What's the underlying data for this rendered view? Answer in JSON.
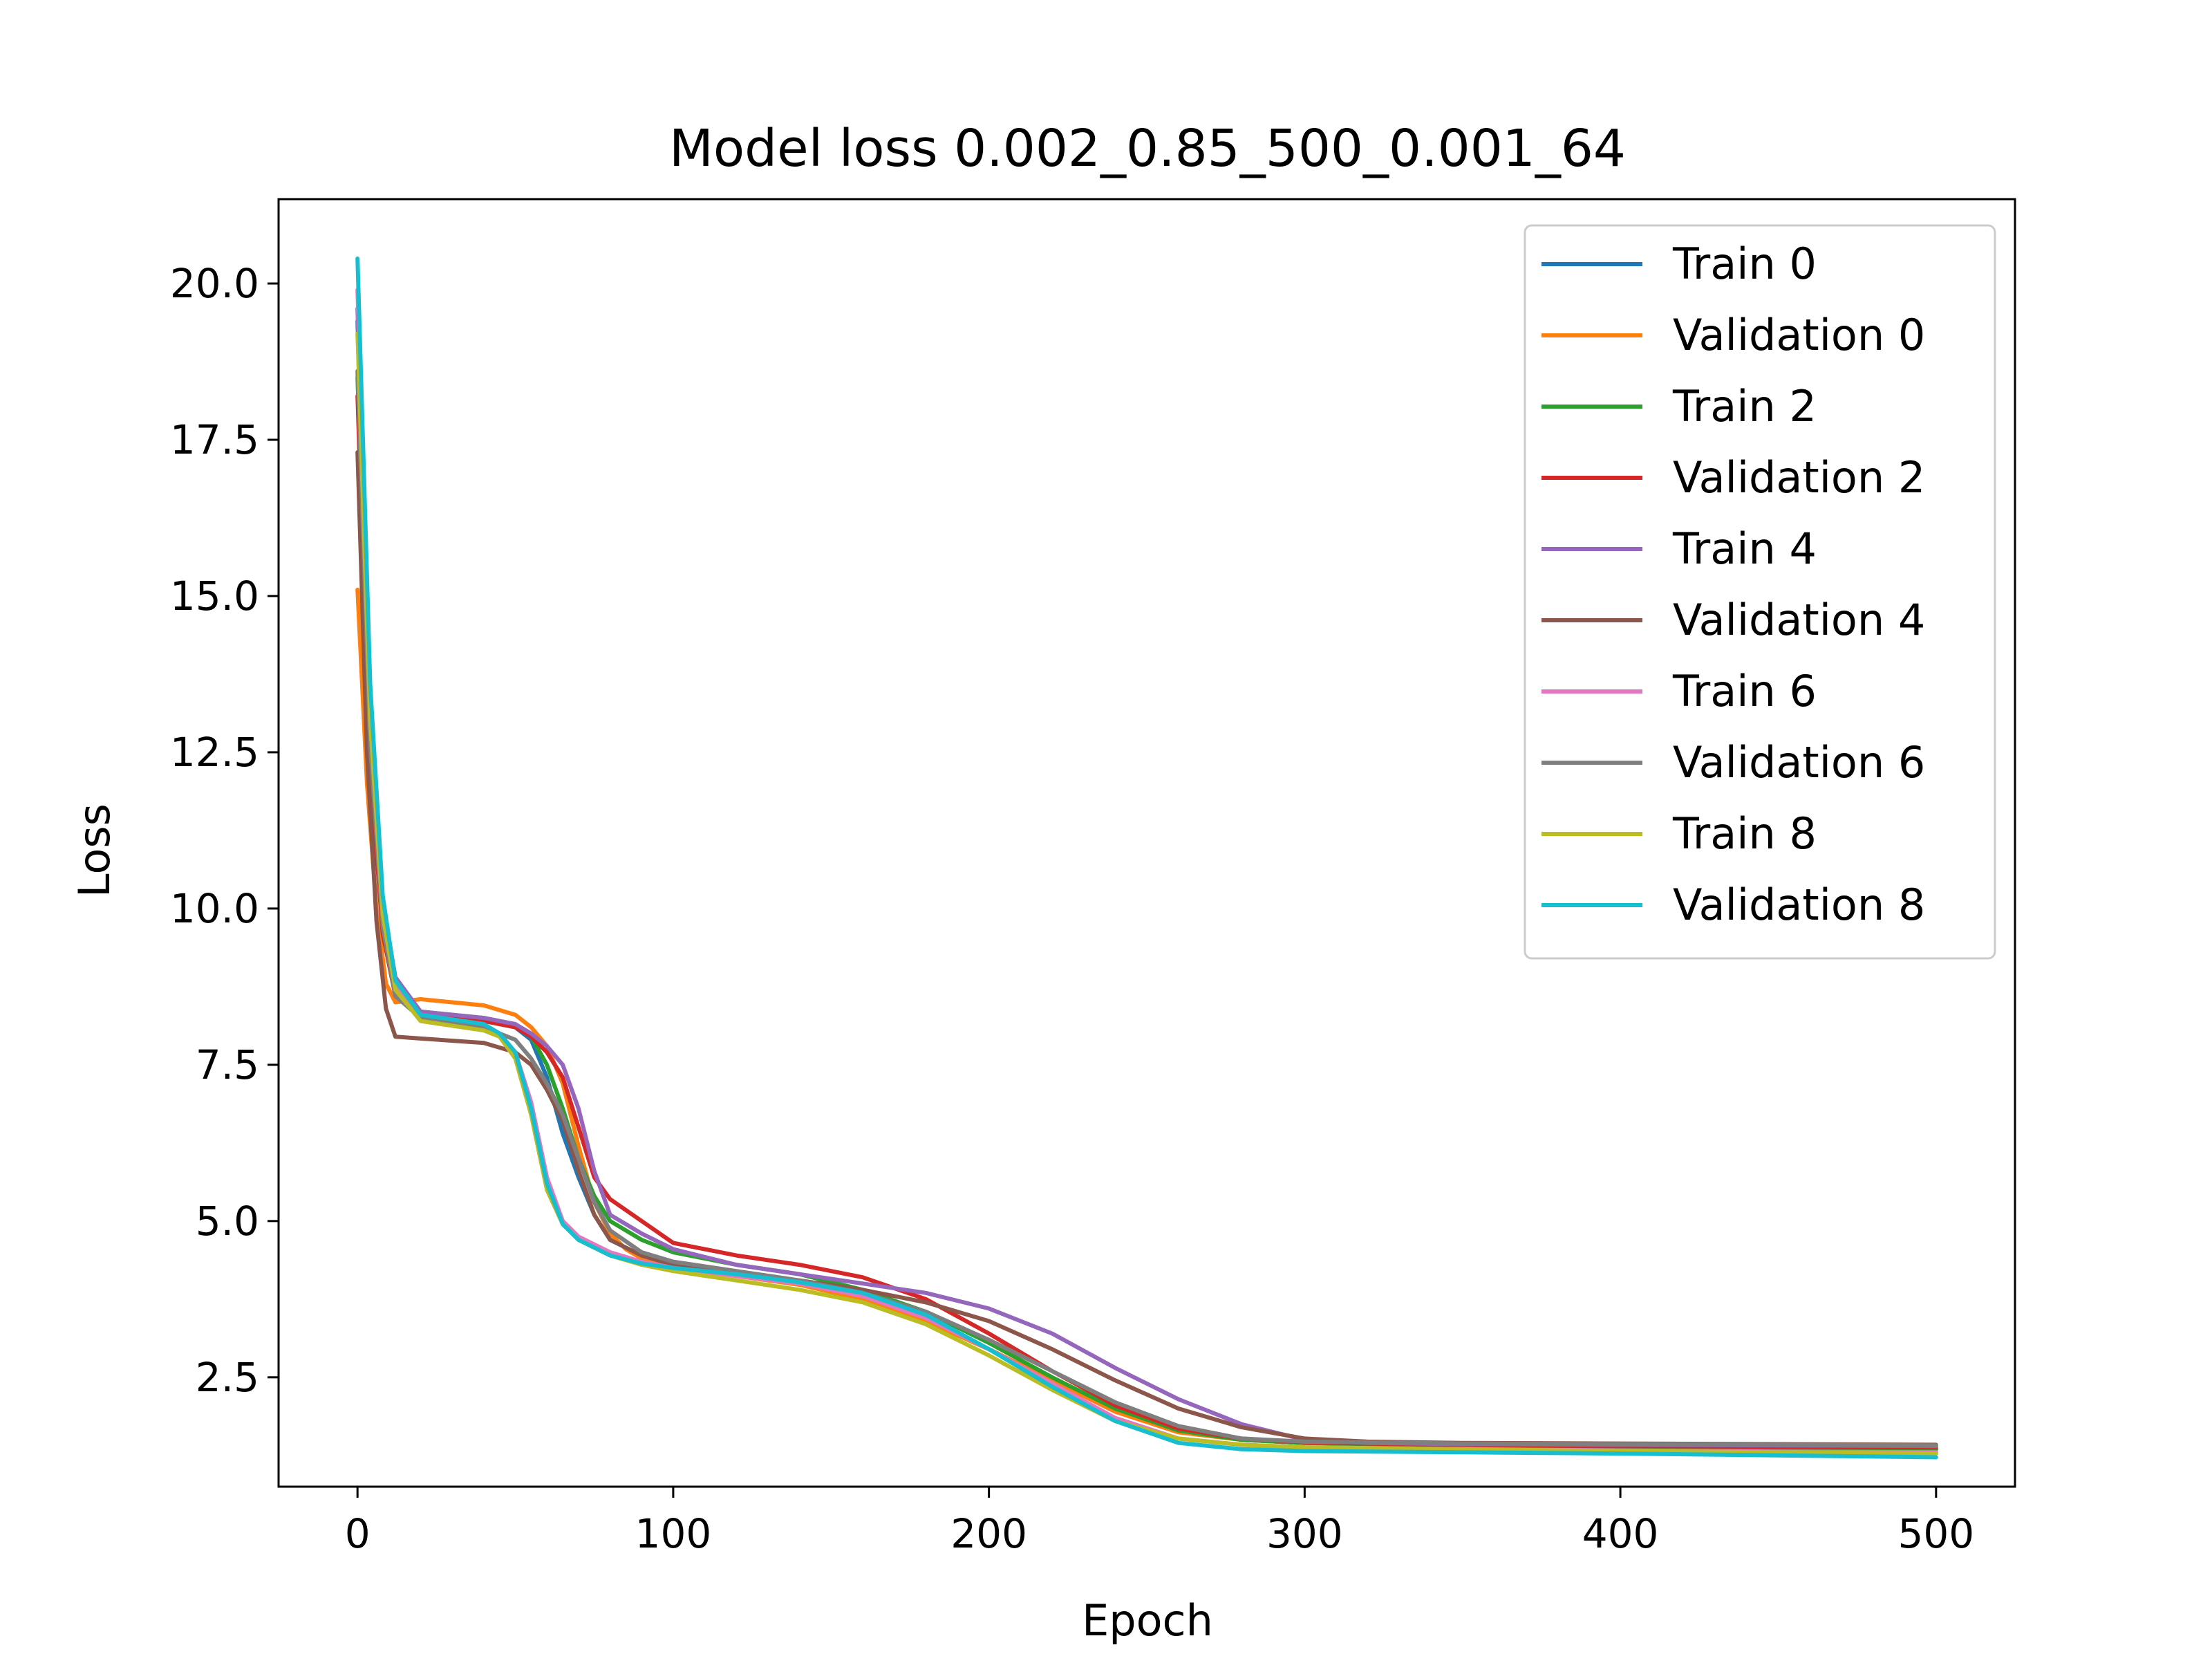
{
  "chart_data": {
    "type": "line",
    "title": "Model loss 0.002_0.85_500_0.001_64",
    "xlabel": "Epoch",
    "ylabel": "Loss",
    "xlim": [
      -25,
      525
    ],
    "ylim": [
      0.75,
      21.35
    ],
    "xticks": [
      0,
      100,
      200,
      300,
      400,
      500
    ],
    "xtick_labels": [
      "0",
      "100",
      "200",
      "300",
      "400",
      "500"
    ],
    "yticks": [
      2.5,
      5.0,
      7.5,
      10.0,
      12.5,
      15.0,
      17.5,
      20.0
    ],
    "ytick_labels": [
      "2.5",
      "5.0",
      "7.5",
      "10.0",
      "12.5",
      "15.0",
      "17.5",
      "20.0"
    ],
    "grid": false,
    "legend_position": "upper right",
    "series": [
      {
        "name": "Train 0",
        "color": "#1f77b4",
        "points": [
          [
            0,
            19.4
          ],
          [
            4,
            13.0
          ],
          [
            8,
            10.0
          ],
          [
            12,
            8.8
          ],
          [
            20,
            8.3
          ],
          [
            40,
            8.2
          ],
          [
            50,
            8.1
          ],
          [
            55,
            7.9
          ],
          [
            60,
            7.3
          ],
          [
            65,
            6.4
          ],
          [
            70,
            5.7
          ],
          [
            75,
            5.1
          ],
          [
            80,
            4.7
          ],
          [
            90,
            4.45
          ],
          [
            100,
            4.3
          ],
          [
            120,
            4.15
          ],
          [
            140,
            4.0
          ],
          [
            160,
            3.75
          ],
          [
            180,
            3.4
          ],
          [
            200,
            2.95
          ],
          [
            220,
            2.45
          ],
          [
            240,
            2.0
          ],
          [
            260,
            1.65
          ],
          [
            280,
            1.5
          ],
          [
            300,
            1.45
          ],
          [
            350,
            1.4
          ],
          [
            400,
            1.38
          ],
          [
            450,
            1.36
          ],
          [
            500,
            1.35
          ]
        ]
      },
      {
        "name": "Validation 0",
        "color": "#ff7f0e",
        "points": [
          [
            0,
            15.1
          ],
          [
            3,
            12.0
          ],
          [
            6,
            10.0
          ],
          [
            9,
            8.8
          ],
          [
            12,
            8.5
          ],
          [
            20,
            8.55
          ],
          [
            40,
            8.45
          ],
          [
            50,
            8.3
          ],
          [
            55,
            8.1
          ],
          [
            60,
            7.8
          ],
          [
            65,
            7.2
          ],
          [
            70,
            6.2
          ],
          [
            75,
            5.3
          ],
          [
            80,
            4.8
          ],
          [
            85,
            4.55
          ],
          [
            90,
            4.4
          ],
          [
            100,
            4.3
          ],
          [
            120,
            4.12
          ],
          [
            140,
            3.98
          ],
          [
            160,
            3.75
          ],
          [
            180,
            3.4
          ],
          [
            200,
            2.95
          ],
          [
            220,
            2.45
          ],
          [
            240,
            1.95
          ],
          [
            260,
            1.62
          ],
          [
            280,
            1.5
          ],
          [
            300,
            1.45
          ],
          [
            350,
            1.4
          ],
          [
            400,
            1.38
          ],
          [
            450,
            1.36
          ],
          [
            500,
            1.35
          ]
        ]
      },
      {
        "name": "Train 2",
        "color": "#2ca02c",
        "points": [
          [
            0,
            18.5
          ],
          [
            4,
            12.5
          ],
          [
            8,
            9.8
          ],
          [
            12,
            8.7
          ],
          [
            20,
            8.35
          ],
          [
            40,
            8.25
          ],
          [
            50,
            8.15
          ],
          [
            55,
            7.95
          ],
          [
            60,
            7.5
          ],
          [
            65,
            6.8
          ],
          [
            70,
            6.0
          ],
          [
            75,
            5.4
          ],
          [
            80,
            5.0
          ],
          [
            90,
            4.7
          ],
          [
            100,
            4.5
          ],
          [
            120,
            4.3
          ],
          [
            140,
            4.15
          ],
          [
            160,
            3.9
          ],
          [
            180,
            3.55
          ],
          [
            200,
            3.05
          ],
          [
            220,
            2.5
          ],
          [
            240,
            2.0
          ],
          [
            260,
            1.65
          ],
          [
            280,
            1.5
          ],
          [
            300,
            1.45
          ],
          [
            350,
            1.4
          ],
          [
            400,
            1.38
          ],
          [
            450,
            1.36
          ],
          [
            500,
            1.35
          ]
        ]
      },
      {
        "name": "Validation 2",
        "color": "#d62728",
        "points": [
          [
            0,
            18.2
          ],
          [
            4,
            12.2
          ],
          [
            8,
            9.6
          ],
          [
            12,
            8.6
          ],
          [
            20,
            8.3
          ],
          [
            40,
            8.2
          ],
          [
            50,
            8.1
          ],
          [
            55,
            7.95
          ],
          [
            60,
            7.7
          ],
          [
            65,
            7.3
          ],
          [
            70,
            6.5
          ],
          [
            75,
            5.7
          ],
          [
            80,
            5.35
          ],
          [
            90,
            5.0
          ],
          [
            100,
            4.65
          ],
          [
            120,
            4.45
          ],
          [
            140,
            4.3
          ],
          [
            160,
            4.1
          ],
          [
            180,
            3.75
          ],
          [
            200,
            3.2
          ],
          [
            220,
            2.6
          ],
          [
            240,
            2.05
          ],
          [
            260,
            1.68
          ],
          [
            280,
            1.52
          ],
          [
            300,
            1.46
          ],
          [
            350,
            1.41
          ],
          [
            400,
            1.4
          ],
          [
            450,
            1.39
          ],
          [
            500,
            1.38
          ]
        ]
      },
      {
        "name": "Train 4",
        "color": "#9467bd",
        "points": [
          [
            0,
            19.6
          ],
          [
            4,
            13.2
          ],
          [
            8,
            10.1
          ],
          [
            12,
            8.9
          ],
          [
            20,
            8.35
          ],
          [
            40,
            8.25
          ],
          [
            50,
            8.15
          ],
          [
            55,
            8.0
          ],
          [
            60,
            7.8
          ],
          [
            65,
            7.5
          ],
          [
            70,
            6.8
          ],
          [
            75,
            5.8
          ],
          [
            80,
            5.1
          ],
          [
            90,
            4.8
          ],
          [
            100,
            4.55
          ],
          [
            120,
            4.3
          ],
          [
            140,
            4.15
          ],
          [
            160,
            4.0
          ],
          [
            180,
            3.85
          ],
          [
            200,
            3.6
          ],
          [
            220,
            3.2
          ],
          [
            240,
            2.65
          ],
          [
            260,
            2.15
          ],
          [
            280,
            1.75
          ],
          [
            300,
            1.5
          ],
          [
            320,
            1.45
          ],
          [
            350,
            1.43
          ],
          [
            400,
            1.42
          ],
          [
            450,
            1.41
          ],
          [
            500,
            1.4
          ]
        ]
      },
      {
        "name": "Validation 4",
        "color": "#8c564b",
        "points": [
          [
            0,
            17.3
          ],
          [
            3,
            12.5
          ],
          [
            6,
            9.8
          ],
          [
            9,
            8.4
          ],
          [
            12,
            7.95
          ],
          [
            20,
            7.92
          ],
          [
            40,
            7.85
          ],
          [
            50,
            7.7
          ],
          [
            55,
            7.5
          ],
          [
            60,
            7.1
          ],
          [
            65,
            6.6
          ],
          [
            70,
            5.8
          ],
          [
            75,
            5.1
          ],
          [
            80,
            4.7
          ],
          [
            90,
            4.45
          ],
          [
            100,
            4.3
          ],
          [
            120,
            4.15
          ],
          [
            140,
            4.05
          ],
          [
            160,
            3.9
          ],
          [
            180,
            3.7
          ],
          [
            200,
            3.4
          ],
          [
            220,
            2.95
          ],
          [
            240,
            2.45
          ],
          [
            260,
            2.0
          ],
          [
            280,
            1.7
          ],
          [
            300,
            1.52
          ],
          [
            320,
            1.47
          ],
          [
            350,
            1.45
          ],
          [
            400,
            1.44
          ],
          [
            450,
            1.43
          ],
          [
            500,
            1.42
          ]
        ]
      },
      {
        "name": "Train 6",
        "color": "#e377c2",
        "points": [
          [
            0,
            19.9
          ],
          [
            4,
            13.4
          ],
          [
            8,
            10.1
          ],
          [
            12,
            8.8
          ],
          [
            20,
            8.3
          ],
          [
            40,
            8.15
          ],
          [
            45,
            8.0
          ],
          [
            50,
            7.7
          ],
          [
            55,
            6.9
          ],
          [
            60,
            5.7
          ],
          [
            65,
            5.0
          ],
          [
            70,
            4.75
          ],
          [
            80,
            4.5
          ],
          [
            90,
            4.35
          ],
          [
            100,
            4.25
          ],
          [
            120,
            4.12
          ],
          [
            140,
            4.0
          ],
          [
            160,
            3.8
          ],
          [
            180,
            3.45
          ],
          [
            200,
            2.95
          ],
          [
            220,
            2.4
          ],
          [
            240,
            1.85
          ],
          [
            260,
            1.52
          ],
          [
            280,
            1.42
          ],
          [
            300,
            1.38
          ],
          [
            350,
            1.35
          ],
          [
            400,
            1.33
          ],
          [
            450,
            1.31
          ],
          [
            500,
            1.3
          ]
        ]
      },
      {
        "name": "Validation 6",
        "color": "#7f7f7f",
        "points": [
          [
            0,
            18.6
          ],
          [
            4,
            12.6
          ],
          [
            8,
            9.7
          ],
          [
            12,
            8.6
          ],
          [
            20,
            8.25
          ],
          [
            40,
            8.1
          ],
          [
            50,
            7.9
          ],
          [
            55,
            7.6
          ],
          [
            60,
            7.2
          ],
          [
            65,
            6.7
          ],
          [
            70,
            6.0
          ],
          [
            75,
            5.3
          ],
          [
            80,
            4.85
          ],
          [
            90,
            4.5
          ],
          [
            100,
            4.35
          ],
          [
            120,
            4.2
          ],
          [
            140,
            4.05
          ],
          [
            160,
            3.85
          ],
          [
            180,
            3.55
          ],
          [
            200,
            3.1
          ],
          [
            220,
            2.6
          ],
          [
            240,
            2.1
          ],
          [
            260,
            1.72
          ],
          [
            280,
            1.52
          ],
          [
            300,
            1.47
          ],
          [
            350,
            1.44
          ],
          [
            400,
            1.43
          ],
          [
            450,
            1.42
          ],
          [
            500,
            1.41
          ]
        ]
      },
      {
        "name": "Train 8",
        "color": "#bcbd22",
        "points": [
          [
            0,
            19.2
          ],
          [
            4,
            13.0
          ],
          [
            8,
            9.9
          ],
          [
            12,
            8.7
          ],
          [
            20,
            8.2
          ],
          [
            40,
            8.05
          ],
          [
            45,
            7.95
          ],
          [
            50,
            7.6
          ],
          [
            55,
            6.7
          ],
          [
            60,
            5.5
          ],
          [
            65,
            4.95
          ],
          [
            70,
            4.7
          ],
          [
            80,
            4.45
          ],
          [
            90,
            4.3
          ],
          [
            100,
            4.2
          ],
          [
            120,
            4.05
          ],
          [
            140,
            3.9
          ],
          [
            160,
            3.7
          ],
          [
            180,
            3.35
          ],
          [
            200,
            2.85
          ],
          [
            220,
            2.3
          ],
          [
            240,
            1.8
          ],
          [
            260,
            1.52
          ],
          [
            280,
            1.42
          ],
          [
            300,
            1.38
          ],
          [
            350,
            1.35
          ],
          [
            400,
            1.32
          ],
          [
            450,
            1.3
          ],
          [
            500,
            1.28
          ]
        ]
      },
      {
        "name": "Validation 8",
        "color": "#17becf",
        "points": [
          [
            0,
            20.4
          ],
          [
            4,
            13.6
          ],
          [
            8,
            10.2
          ],
          [
            12,
            8.85
          ],
          [
            20,
            8.3
          ],
          [
            40,
            8.15
          ],
          [
            45,
            8.0
          ],
          [
            50,
            7.7
          ],
          [
            55,
            6.8
          ],
          [
            60,
            5.6
          ],
          [
            65,
            4.95
          ],
          [
            70,
            4.7
          ],
          [
            80,
            4.45
          ],
          [
            90,
            4.32
          ],
          [
            100,
            4.25
          ],
          [
            120,
            4.15
          ],
          [
            140,
            4.02
          ],
          [
            160,
            3.85
          ],
          [
            180,
            3.5
          ],
          [
            200,
            2.95
          ],
          [
            220,
            2.35
          ],
          [
            240,
            1.8
          ],
          [
            260,
            1.45
          ],
          [
            280,
            1.35
          ],
          [
            300,
            1.32
          ],
          [
            350,
            1.3
          ],
          [
            400,
            1.28
          ],
          [
            450,
            1.25
          ],
          [
            500,
            1.22
          ]
        ]
      }
    ]
  }
}
